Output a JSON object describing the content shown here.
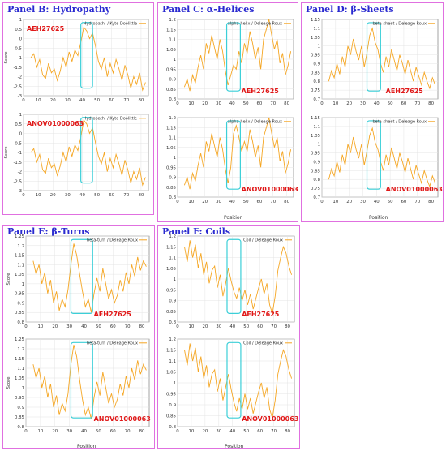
{
  "theme": {
    "line_color": "#f5a623",
    "box_color": "#3ccfd8",
    "label_color": "#e01818",
    "title_color": "#2a2ad0",
    "frame_color": "#e070e0"
  },
  "panels": [
    {
      "title": "Panel B: Hydropathy"
    },
    {
      "title": "Panel C: α-Helices"
    },
    {
      "title": "Panel D: β-Sheets"
    },
    {
      "title": "Panel E: β-Turns"
    },
    {
      "title": "Panel F: Coils"
    }
  ],
  "chart_data": [
    {
      "type": "line",
      "legend": "Hydropath. / Kyte  Doolittle",
      "xlabel": "",
      "ylabel": "Score",
      "label": "AEH27625",
      "xlim": [
        0,
        85
      ],
      "ylim": [
        -3,
        1
      ],
      "yticks": [
        -3,
        -2.5,
        -2,
        -1.5,
        -1,
        -0.5,
        0,
        0.5,
        1
      ],
      "xticks": [
        0,
        10,
        20,
        30,
        40,
        50,
        60,
        70,
        80
      ],
      "highlight": [
        39,
        47
      ],
      "x": [
        5,
        7,
        9,
        11,
        13,
        15,
        17,
        19,
        21,
        23,
        25,
        27,
        29,
        31,
        33,
        35,
        37,
        39,
        41,
        43,
        45,
        47,
        49,
        51,
        53,
        55,
        57,
        59,
        61,
        63,
        65,
        67,
        69,
        71,
        73,
        75,
        77,
        79,
        81,
        83
      ],
      "values": [
        -1.0,
        -0.8,
        -1.5,
        -1.1,
        -1.9,
        -2.1,
        -1.3,
        -1.8,
        -1.6,
        -2.2,
        -1.7,
        -1.0,
        -1.5,
        -0.7,
        -1.2,
        -0.6,
        -0.9,
        -0.2,
        0.6,
        0.4,
        0.0,
        0.3,
        -0.4,
        -1.2,
        -1.6,
        -1.0,
        -2.0,
        -1.3,
        -1.8,
        -1.1,
        -1.6,
        -2.2,
        -1.4,
        -1.9,
        -2.6,
        -2.0,
        -2.4,
        -1.8,
        -2.7,
        -2.3
      ]
    },
    {
      "type": "line",
      "legend": "Hydropath. / Kyte  Doolittle",
      "xlabel": "",
      "ylabel": "Score",
      "label": "ANOV01000063",
      "xlim": [
        0,
        85
      ],
      "ylim": [
        -3,
        1
      ],
      "yticks": [
        -3,
        -2.5,
        -2,
        -1.5,
        -1,
        -0.5,
        0,
        0.5,
        1
      ],
      "xticks": [
        0,
        10,
        20,
        30,
        40,
        50,
        60,
        70,
        80
      ],
      "highlight": [
        39,
        47
      ],
      "x": [
        5,
        7,
        9,
        11,
        13,
        15,
        17,
        19,
        21,
        23,
        25,
        27,
        29,
        31,
        33,
        35,
        37,
        39,
        41,
        43,
        45,
        47,
        49,
        51,
        53,
        55,
        57,
        59,
        61,
        63,
        65,
        67,
        69,
        71,
        73,
        75,
        77,
        79,
        81,
        83
      ],
      "values": [
        -1.0,
        -0.8,
        -1.5,
        -1.1,
        -1.9,
        -2.1,
        -1.3,
        -1.8,
        -1.6,
        -2.2,
        -1.7,
        -1.0,
        -1.5,
        -0.7,
        -1.2,
        -0.6,
        -0.9,
        -0.2,
        0.7,
        0.5,
        0.0,
        0.3,
        -0.5,
        -1.2,
        -1.6,
        -1.0,
        -2.0,
        -1.3,
        -1.8,
        -1.1,
        -1.6,
        -2.2,
        -1.4,
        -1.9,
        -2.6,
        -2.0,
        -2.4,
        -1.8,
        -2.7,
        -2.3
      ]
    },
    {
      "type": "line",
      "legend": "alpha-helix / Deleage  Roux",
      "xlabel": "",
      "ylabel": "",
      "label": "AEH27625",
      "xlim": [
        0,
        85
      ],
      "ylim": [
        0.8,
        1.2
      ],
      "yticks": [
        0.8,
        0.85,
        0.9,
        0.95,
        1,
        1.05,
        1.1,
        1.15,
        1.2
      ],
      "xticks": [
        0,
        10,
        20,
        30,
        40,
        50,
        60,
        70,
        80
      ],
      "highlight": [
        36,
        46
      ],
      "x": [
        5,
        7,
        9,
        11,
        13,
        15,
        17,
        19,
        21,
        23,
        25,
        27,
        29,
        31,
        33,
        35,
        37,
        39,
        41,
        43,
        45,
        47,
        49,
        51,
        53,
        55,
        57,
        59,
        61,
        63,
        65,
        67,
        69,
        71,
        73,
        75,
        77,
        79,
        81,
        83
      ],
      "values": [
        0.86,
        0.9,
        0.84,
        0.92,
        0.88,
        0.96,
        1.02,
        0.95,
        1.08,
        1.03,
        1.12,
        1.06,
        1.0,
        1.1,
        1.04,
        0.94,
        0.87,
        0.92,
        0.97,
        0.95,
        1.04,
        0.98,
        1.08,
        1.03,
        1.14,
        1.08,
        1.0,
        1.06,
        0.95,
        1.1,
        1.15,
        1.2,
        1.12,
        1.05,
        1.1,
        0.98,
        1.03,
        0.92,
        0.97,
        1.04
      ]
    },
    {
      "type": "line",
      "legend": "alpha-helix / Deleage  Roux",
      "xlabel": "Position",
      "ylabel": "",
      "label": "ANOV01000063",
      "xlim": [
        0,
        85
      ],
      "ylim": [
        0.8,
        1.2
      ],
      "yticks": [
        0.8,
        0.85,
        0.9,
        0.95,
        1,
        1.05,
        1.1,
        1.15,
        1.2
      ],
      "xticks": [
        0,
        10,
        20,
        30,
        40,
        50,
        60,
        70,
        80
      ],
      "highlight": [
        36,
        46
      ],
      "x": [
        5,
        7,
        9,
        11,
        13,
        15,
        17,
        19,
        21,
        23,
        25,
        27,
        29,
        31,
        33,
        35,
        37,
        39,
        41,
        43,
        45,
        47,
        49,
        51,
        53,
        55,
        57,
        59,
        61,
        63,
        65,
        67,
        69,
        71,
        73,
        75,
        77,
        79,
        81,
        83
      ],
      "values": [
        0.86,
        0.9,
        0.84,
        0.92,
        0.88,
        0.96,
        1.02,
        0.95,
        1.08,
        1.03,
        1.12,
        1.06,
        1.0,
        1.1,
        1.04,
        0.94,
        0.87,
        0.95,
        1.12,
        1.16,
        1.1,
        1.03,
        1.08,
        1.03,
        1.14,
        1.08,
        1.0,
        1.06,
        0.95,
        1.1,
        1.15,
        1.2,
        1.12,
        1.05,
        1.1,
        0.98,
        1.03,
        0.92,
        0.97,
        1.04
      ]
    },
    {
      "type": "line",
      "legend": "beta-sheet / Deleage  Roux",
      "xlabel": "",
      "ylabel": "",
      "label": "AEH27625",
      "xlim": [
        0,
        85
      ],
      "ylim": [
        0.7,
        1.15
      ],
      "yticks": [
        0.7,
        0.75,
        0.8,
        0.85,
        0.9,
        0.95,
        1,
        1.05,
        1.1,
        1.15
      ],
      "xticks": [
        0,
        10,
        20,
        30,
        40,
        50,
        60,
        70,
        80
      ],
      "highlight": [
        33,
        43
      ],
      "x": [
        5,
        7,
        9,
        11,
        13,
        15,
        17,
        19,
        21,
        23,
        25,
        27,
        29,
        31,
        33,
        35,
        37,
        39,
        41,
        43,
        45,
        47,
        49,
        51,
        53,
        55,
        57,
        59,
        61,
        63,
        65,
        67,
        69,
        71,
        73,
        75,
        77,
        79,
        81,
        83
      ],
      "values": [
        0.8,
        0.86,
        0.82,
        0.9,
        0.84,
        0.94,
        0.88,
        1.0,
        0.95,
        1.04,
        0.97,
        0.92,
        1.0,
        0.88,
        0.96,
        1.06,
        1.1,
        1.02,
        0.98,
        0.9,
        0.85,
        0.94,
        0.88,
        0.98,
        0.92,
        0.86,
        0.95,
        0.9,
        0.84,
        0.92,
        0.86,
        0.8,
        0.88,
        0.83,
        0.78,
        0.85,
        0.8,
        0.76,
        0.82,
        0.78
      ]
    },
    {
      "type": "line",
      "legend": "beta-sheet / Deleage  Roux",
      "xlabel": "Position",
      "ylabel": "",
      "label": "ANOV01000063",
      "xlim": [
        0,
        85
      ],
      "ylim": [
        0.7,
        1.15
      ],
      "yticks": [
        0.7,
        0.75,
        0.8,
        0.85,
        0.9,
        0.95,
        1,
        1.05,
        1.1,
        1.15
      ],
      "xticks": [
        0,
        10,
        20,
        30,
        40,
        50,
        60,
        70,
        80
      ],
      "highlight": [
        33,
        43
      ],
      "x": [
        5,
        7,
        9,
        11,
        13,
        15,
        17,
        19,
        21,
        23,
        25,
        27,
        29,
        31,
        33,
        35,
        37,
        39,
        41,
        43,
        45,
        47,
        49,
        51,
        53,
        55,
        57,
        59,
        61,
        63,
        65,
        67,
        69,
        71,
        73,
        75,
        77,
        79,
        81,
        83
      ],
      "values": [
        0.8,
        0.86,
        0.82,
        0.9,
        0.84,
        0.94,
        0.88,
        1.0,
        0.95,
        1.04,
        0.97,
        0.92,
        1.0,
        0.88,
        0.96,
        1.05,
        1.09,
        1.01,
        0.97,
        0.9,
        0.85,
        0.94,
        0.88,
        0.98,
        0.92,
        0.86,
        0.95,
        0.9,
        0.84,
        0.92,
        0.86,
        0.8,
        0.88,
        0.83,
        0.78,
        0.85,
        0.8,
        0.76,
        0.82,
        0.78
      ]
    },
    {
      "type": "line",
      "legend": "beta-turn / Deleage  Roux",
      "xlabel": "",
      "ylabel": "Score",
      "label": "AEH27625",
      "xlim": [
        0,
        85
      ],
      "ylim": [
        0.8,
        1.25
      ],
      "yticks": [
        0.8,
        0.85,
        0.9,
        0.95,
        1,
        1.05,
        1.1,
        1.15,
        1.2,
        1.25
      ],
      "xticks": [
        0,
        10,
        20,
        30,
        40,
        50,
        60,
        70,
        80
      ],
      "highlight": [
        31,
        46
      ],
      "x": [
        5,
        7,
        9,
        11,
        13,
        15,
        17,
        19,
        21,
        23,
        25,
        27,
        29,
        31,
        33,
        35,
        37,
        39,
        41,
        43,
        45,
        47,
        49,
        51,
        53,
        55,
        57,
        59,
        61,
        63,
        65,
        67,
        69,
        71,
        73,
        75,
        77,
        79,
        81,
        83
      ],
      "values": [
        1.12,
        1.05,
        1.1,
        1.0,
        1.06,
        0.95,
        1.02,
        0.9,
        0.96,
        0.86,
        0.92,
        0.88,
        0.97,
        1.1,
        1.21,
        1.15,
        1.05,
        0.96,
        0.88,
        0.92,
        0.85,
        0.95,
        1.03,
        0.96,
        1.08,
        1.0,
        0.92,
        0.97,
        0.9,
        0.94,
        1.02,
        0.96,
        1.06,
        1.0,
        1.1,
        1.04,
        1.14,
        1.07,
        1.12,
        1.09
      ]
    },
    {
      "type": "line",
      "legend": "beta-turn / Deleage  Roux",
      "xlabel": "Position",
      "ylabel": "Score",
      "label": "ANOV01000063",
      "xlim": [
        0,
        85
      ],
      "ylim": [
        0.8,
        1.25
      ],
      "yticks": [
        0.8,
        0.85,
        0.9,
        0.95,
        1,
        1.05,
        1.1,
        1.15,
        1.2,
        1.25
      ],
      "xticks": [
        0,
        10,
        20,
        30,
        40,
        50,
        60,
        70,
        80
      ],
      "highlight": [
        31,
        46
      ],
      "x": [
        5,
        7,
        9,
        11,
        13,
        15,
        17,
        19,
        21,
        23,
        25,
        27,
        29,
        31,
        33,
        35,
        37,
        39,
        41,
        43,
        45,
        47,
        49,
        51,
        53,
        55,
        57,
        59,
        61,
        63,
        65,
        67,
        69,
        71,
        73,
        75,
        77,
        79,
        81,
        83
      ],
      "values": [
        1.12,
        1.05,
        1.1,
        1.0,
        1.06,
        0.95,
        1.02,
        0.9,
        0.96,
        0.86,
        0.92,
        0.88,
        0.97,
        1.12,
        1.22,
        1.16,
        1.04,
        0.94,
        0.86,
        0.9,
        0.84,
        0.95,
        1.03,
        0.96,
        1.08,
        1.0,
        0.92,
        0.97,
        0.9,
        0.94,
        1.02,
        0.96,
        1.06,
        1.0,
        1.1,
        1.04,
        1.14,
        1.07,
        1.12,
        1.09
      ]
    },
    {
      "type": "line",
      "legend": "Coil / Deleage  Roux",
      "xlabel": "",
      "ylabel": "",
      "label": "AEH27625",
      "xlim": [
        0,
        85
      ],
      "ylim": [
        0.8,
        1.2
      ],
      "yticks": [
        0.8,
        0.85,
        0.9,
        0.95,
        1,
        1.05,
        1.1,
        1.15,
        1.2
      ],
      "xticks": [
        0,
        10,
        20,
        30,
        40,
        50,
        60,
        70,
        80
      ],
      "highlight": [
        36,
        46
      ],
      "x": [
        5,
        7,
        9,
        11,
        13,
        15,
        17,
        19,
        21,
        23,
        25,
        27,
        29,
        31,
        33,
        35,
        37,
        39,
        41,
        43,
        45,
        47,
        49,
        51,
        53,
        55,
        57,
        59,
        61,
        63,
        65,
        67,
        69,
        71,
        73,
        75,
        77,
        79,
        81,
        83
      ],
      "values": [
        1.15,
        1.08,
        1.18,
        1.1,
        1.16,
        1.05,
        1.12,
        1.02,
        1.08,
        0.98,
        1.04,
        1.06,
        0.96,
        1.02,
        0.92,
        0.98,
        1.05,
        0.99,
        0.94,
        0.91,
        0.96,
        0.9,
        0.95,
        0.88,
        0.93,
        0.86,
        0.91,
        0.96,
        1.0,
        0.93,
        0.98,
        0.88,
        0.84,
        0.92,
        1.04,
        1.1,
        1.15,
        1.12,
        1.06,
        1.02
      ]
    },
    {
      "type": "line",
      "legend": "Coil / Deleage  Roux",
      "xlabel": "Position",
      "ylabel": "",
      "label": "ANOV01000063",
      "xlim": [
        0,
        85
      ],
      "ylim": [
        0.8,
        1.2
      ],
      "yticks": [
        0.8,
        0.85,
        0.9,
        0.95,
        1,
        1.05,
        1.1,
        1.15,
        1.2
      ],
      "xticks": [
        0,
        10,
        20,
        30,
        40,
        50,
        60,
        70,
        80
      ],
      "highlight": [
        36,
        46
      ],
      "x": [
        5,
        7,
        9,
        11,
        13,
        15,
        17,
        19,
        21,
        23,
        25,
        27,
        29,
        31,
        33,
        35,
        37,
        39,
        41,
        43,
        45,
        47,
        49,
        51,
        53,
        55,
        57,
        59,
        61,
        63,
        65,
        67,
        69,
        71,
        73,
        75,
        77,
        79,
        81,
        83
      ],
      "values": [
        1.15,
        1.08,
        1.18,
        1.1,
        1.16,
        1.05,
        1.12,
        1.02,
        1.08,
        0.98,
        1.04,
        1.06,
        0.96,
        1.02,
        0.92,
        0.98,
        1.04,
        0.97,
        0.91,
        0.87,
        0.93,
        0.88,
        0.95,
        0.88,
        0.93,
        0.86,
        0.91,
        0.96,
        1.0,
        0.93,
        0.98,
        0.88,
        0.84,
        0.92,
        1.04,
        1.1,
        1.15,
        1.12,
        1.06,
        1.02
      ]
    }
  ]
}
